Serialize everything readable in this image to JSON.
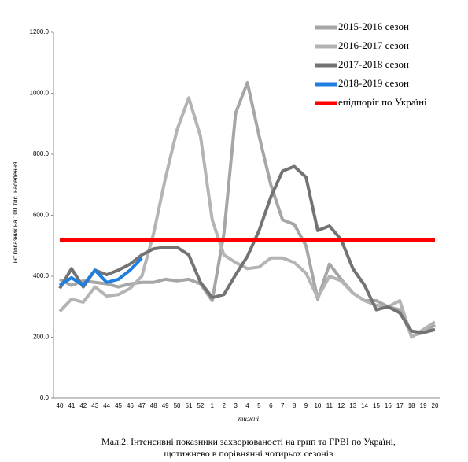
{
  "chart_data": {
    "type": "line",
    "y_label": "інт.показник на 100 тис. населення",
    "x_label": "тижні",
    "caption": [
      "Мал.2. Інтенсивні показники захворюваності на грип та ГРВІ по Україні,",
      "щотижнево в порівнянні чотирьох сезонів"
    ],
    "categories": [
      "40",
      "41",
      "42",
      "43",
      "44",
      "45",
      "46",
      "47",
      "48",
      "49",
      "50",
      "51",
      "52",
      "1",
      "2",
      "3",
      "4",
      "5",
      "6",
      "7",
      "8",
      "9",
      "10",
      "11",
      "12",
      "13",
      "14",
      "15",
      "16",
      "17",
      "18",
      "19",
      "20"
    ],
    "ylim": [
      0,
      1200
    ],
    "yticks": [
      {
        "value": 0,
        "label": "0.0"
      },
      {
        "value": 200,
        "label": "200.0"
      },
      {
        "value": 400,
        "label": "400.0"
      },
      {
        "value": 600,
        "label": "600.0"
      },
      {
        "value": 800,
        "label": "800.0"
      },
      {
        "value": 1000,
        "label": "1000.0"
      },
      {
        "value": 1200,
        "label": "1200.0"
      }
    ],
    "series": [
      {
        "name": "2015-2016 сезон",
        "color": "#a6a6a6",
        "values": [
          390,
          370,
          385,
          380,
          375,
          365,
          375,
          380,
          380,
          390,
          385,
          390,
          375,
          320,
          540,
          935,
          1035,
          860,
          700,
          585,
          570,
          500,
          325,
          440,
          390,
          345,
          320,
          320,
          300,
          290,
          205,
          215,
          240
        ]
      },
      {
        "name": "2016-2017 сезон",
        "color": "#b4b4b4",
        "values": [
          285,
          325,
          315,
          365,
          335,
          340,
          360,
          400,
          540,
          720,
          880,
          985,
          860,
          585,
          470,
          445,
          425,
          430,
          460,
          460,
          445,
          410,
          330,
          400,
          385,
          345,
          320,
          305,
          300,
          320,
          200,
          225,
          250
        ]
      },
      {
        "name": "2017-2018 сезон",
        "color": "#737373",
        "values": [
          360,
          425,
          365,
          420,
          405,
          420,
          440,
          470,
          490,
          495,
          495,
          470,
          380,
          330,
          340,
          405,
          465,
          550,
          660,
          745,
          760,
          725,
          550,
          565,
          520,
          425,
          370,
          290,
          300,
          280,
          220,
          215,
          225
        ]
      },
      {
        "name": "2018-2019 сезон",
        "color": "#1f7fe0",
        "values": [
          370,
          395,
          370,
          420,
          380,
          390,
          420,
          460,
          null,
          null,
          null,
          null,
          null,
          null,
          null,
          null,
          null,
          null,
          null,
          null,
          null,
          null,
          null,
          null,
          null,
          null,
          null,
          null,
          null,
          null,
          null,
          null,
          null
        ]
      },
      {
        "name": "епідпоріг по Україні",
        "color": "#ff0000",
        "width": 5,
        "values": [
          520,
          520,
          520,
          520,
          520,
          520,
          520,
          520,
          520,
          520,
          520,
          520,
          520,
          520,
          520,
          520,
          520,
          520,
          520,
          520,
          520,
          520,
          520,
          520,
          520,
          520,
          520,
          520,
          520,
          520,
          520,
          520,
          520
        ]
      }
    ]
  }
}
